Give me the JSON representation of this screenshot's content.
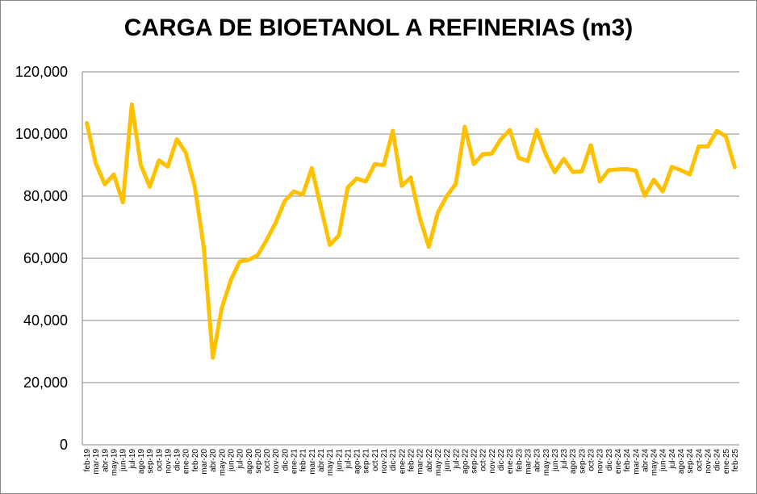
{
  "chart_data": {
    "type": "line",
    "title": "CARGA DE BIOETANOL A REFINERIAS (m3)",
    "ylim": [
      0,
      120000
    ],
    "yticks": [
      "0",
      "20,000",
      "40,000",
      "60,000",
      "80,000",
      "100,000",
      "120,000"
    ],
    "ytick_values": [
      0,
      20000,
      40000,
      60000,
      80000,
      100000,
      120000
    ],
    "grid": true,
    "legend": "none",
    "line_color": "#FFC000",
    "categories": [
      "feb-19",
      "mar-19",
      "abr-19",
      "may-19",
      "jun-19",
      "jul-19",
      "ago-19",
      "sep-19",
      "oct-19",
      "nov-19",
      "dic-19",
      "ene-20",
      "feb-20",
      "mar-20",
      "abr-20",
      "may-20",
      "jun-20",
      "jul-20",
      "ago-20",
      "sep-20",
      "oct-20",
      "nov-20",
      "dic-20",
      "ene-21",
      "feb-21",
      "mar-21",
      "abr-21",
      "may-21",
      "jun-21",
      "jul-21",
      "ago-21",
      "sep-21",
      "oct-21",
      "nov-21",
      "dic-21",
      "ene-22",
      "feb-22",
      "mar-22",
      "abr-22",
      "may-22",
      "jun-22",
      "jul-22",
      "ago-22",
      "sep-22",
      "oct-22",
      "nov-22",
      "dic-22",
      "ene-23",
      "feb-23",
      "mar-23",
      "abr-23",
      "may-23",
      "jun-23",
      "jul-23",
      "ago-23",
      "sep-23",
      "oct-23",
      "nov-23",
      "dic-23",
      "ene-24",
      "feb-24",
      "mar-24",
      "abr-24",
      "may-24",
      "jun-24",
      "jul-24",
      "ago-24",
      "sep-24",
      "oct-24",
      "nov-24",
      "dic-24",
      "ene-25",
      "feb-25"
    ],
    "values": [
      103500,
      90500,
      83800,
      87000,
      78000,
      109500,
      90000,
      83000,
      91500,
      89500,
      98300,
      94000,
      83000,
      63500,
      28000,
      44000,
      53000,
      59000,
      59500,
      61000,
      66000,
      71500,
      78500,
      81500,
      80500,
      89000,
      76500,
      64300,
      67300,
      82800,
      85700,
      84700,
      90300,
      90000,
      101000,
      83300,
      86000,
      73000,
      63700,
      74700,
      80000,
      84000,
      102300,
      90300,
      93500,
      93700,
      98300,
      101300,
      92300,
      91300,
      101300,
      93400,
      87700,
      92000,
      87800,
      88000,
      96400,
      84700,
      88400,
      88600,
      88700,
      88200,
      80100,
      85300,
      81500,
      89400,
      88400,
      87000,
      96000,
      96000,
      101000,
      99300,
      89300
    ]
  }
}
